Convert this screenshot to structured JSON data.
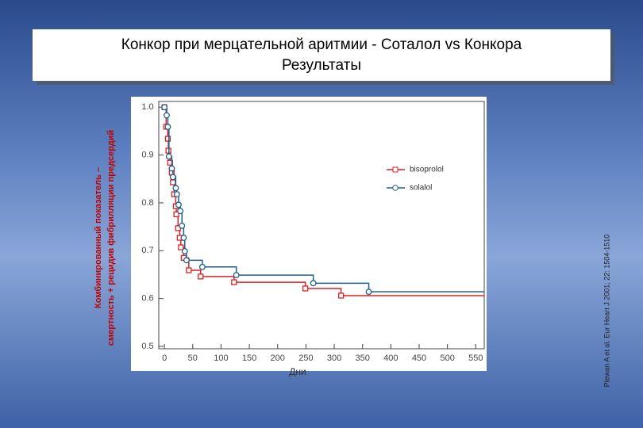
{
  "chart_data": {
    "type": "step",
    "title": "Конкор при мерцательной аритмии - Соталол vs Конкора",
    "subtitle": "Результаты",
    "y_label": [
      "Комбинированный показатель –",
      "смертность + рецидив фибрилляции предсердий"
    ],
    "x_label": "Дни",
    "citation": "Plewan A et al. Eur Heart J 2001; 22: 1504-1510",
    "xlim": [
      -10,
      565
    ],
    "ylim": [
      0.495,
      1.012
    ],
    "xticks": [
      0,
      50,
      100,
      150,
      200,
      250,
      300,
      350,
      400,
      450,
      500,
      550
    ],
    "yticks": [
      {
        "value": 1,
        "label": "1.0"
      },
      0.9,
      0.8,
      0.7,
      0.6,
      0.5
    ],
    "legend": "upper right",
    "series": [
      {
        "name": "bisoprolol",
        "color": "#e02020",
        "marker": "square",
        "x": [
          0,
          3,
          6,
          7,
          10,
          13,
          15,
          17,
          20,
          21,
          24,
          27,
          29,
          34,
          43,
          64,
          123,
          249,
          312
        ],
        "values": [
          1,
          0.959,
          0.934,
          0.909,
          0.884,
          0.863,
          0.843,
          0.818,
          0.793,
          0.776,
          0.747,
          0.727,
          0.707,
          0.685,
          0.659,
          0.646,
          0.634,
          0.621,
          0.606
        ]
      },
      {
        "name": "solalol",
        "color": "#1f5f8a",
        "marker": "circle",
        "x": [
          0,
          4,
          6,
          8,
          13,
          15,
          20,
          22,
          25,
          28,
          31,
          34,
          36,
          39,
          67,
          127,
          263,
          361
        ],
        "values": [
          1,
          0.983,
          0.959,
          0.897,
          0.872,
          0.854,
          0.831,
          0.818,
          0.796,
          0.783,
          0.752,
          0.727,
          0.699,
          0.68,
          0.666,
          0.649,
          0.632,
          0.614
        ]
      }
    ]
  }
}
